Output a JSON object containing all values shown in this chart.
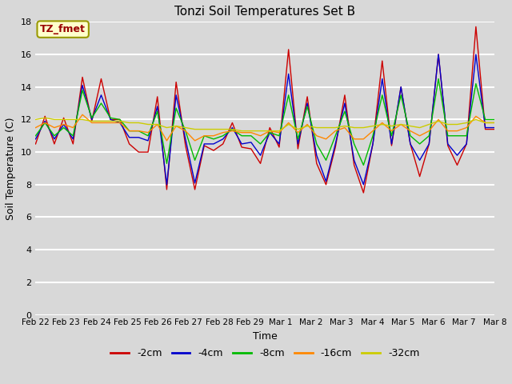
{
  "title": "Tonzi Soil Temperatures Set B",
  "xlabel": "Time",
  "ylabel": "Soil Temperature (C)",
  "annotation": "TZ_fmet",
  "ylim": [
    0,
    18
  ],
  "yticks": [
    0,
    2,
    4,
    6,
    8,
    10,
    12,
    14,
    16,
    18
  ],
  "xtick_labels": [
    "Feb 22",
    "Feb 23",
    "Feb 24",
    "Feb 25",
    "Feb 26",
    "Feb 27",
    "Feb 28",
    "Feb 29",
    "Mar 1",
    "Mar 2",
    "Mar 3",
    "Mar 4",
    "Mar 5",
    "Mar 6",
    "Mar 7",
    "Mar 8"
  ],
  "series_colors": [
    "#cc0000",
    "#0000cc",
    "#00bb00",
    "#ff8800",
    "#cccc00"
  ],
  "series_labels": [
    "-2cm",
    "-4cm",
    "-8cm",
    "-16cm",
    "-32cm"
  ],
  "background_color": "#d8d8d8",
  "plot_bg_color": "#d8d8d8",
  "grid_color": "#ffffff",
  "legend_bg_color": "#ffffff",
  "annotation_box_color": "#ffffcc",
  "annotation_box_edge": "#999900",
  "annotation_text_color": "#990000",
  "data_2cm": [
    10.5,
    12.2,
    10.5,
    12.1,
    10.5,
    14.6,
    11.9,
    14.5,
    12.0,
    12.0,
    10.5,
    10.0,
    10.0,
    13.4,
    7.7,
    14.3,
    10.4,
    7.7,
    10.4,
    10.1,
    10.5,
    11.8,
    10.3,
    10.2,
    9.3,
    11.5,
    10.3,
    16.3,
    10.2,
    13.4,
    9.3,
    8.0,
    10.3,
    13.5,
    9.2,
    7.5,
    10.5,
    15.6,
    10.4,
    14.0,
    10.5,
    8.5,
    10.5,
    16.0,
    10.4,
    9.2,
    10.5,
    17.7,
    11.4,
    11.4
  ],
  "data_4cm": [
    10.8,
    11.9,
    10.8,
    11.7,
    10.8,
    14.1,
    12.0,
    13.5,
    12.0,
    11.8,
    10.9,
    10.9,
    10.7,
    12.8,
    8.0,
    13.5,
    10.8,
    8.1,
    10.5,
    10.5,
    10.8,
    11.5,
    10.5,
    10.6,
    9.8,
    11.2,
    10.5,
    14.8,
    10.5,
    13.0,
    9.8,
    8.2,
    10.5,
    13.0,
    9.5,
    8.0,
    10.5,
    14.5,
    10.5,
    14.0,
    10.5,
    9.5,
    10.5,
    16.0,
    10.5,
    9.8,
    10.5,
    16.0,
    11.5,
    11.5
  ],
  "data_8cm": [
    11.0,
    11.8,
    11.0,
    11.5,
    11.0,
    13.8,
    12.1,
    13.0,
    12.1,
    12.0,
    11.3,
    11.3,
    11.0,
    12.5,
    9.3,
    12.7,
    11.3,
    9.5,
    11.0,
    10.8,
    11.0,
    11.4,
    11.0,
    11.0,
    10.5,
    11.2,
    11.0,
    13.5,
    10.8,
    12.8,
    10.5,
    9.5,
    11.0,
    12.5,
    10.5,
    9.2,
    11.0,
    13.5,
    11.0,
    13.5,
    11.0,
    10.5,
    11.0,
    14.5,
    11.0,
    11.0,
    11.0,
    14.2,
    12.0,
    12.0
  ],
  "data_16cm": [
    11.5,
    11.8,
    11.5,
    11.7,
    11.5,
    12.3,
    11.8,
    11.8,
    11.8,
    11.8,
    11.3,
    11.3,
    11.2,
    11.7,
    10.7,
    11.6,
    11.3,
    10.7,
    11.0,
    11.0,
    11.2,
    11.3,
    11.2,
    11.2,
    11.0,
    11.3,
    11.2,
    11.8,
    11.2,
    11.7,
    11.0,
    10.8,
    11.3,
    11.5,
    10.8,
    10.8,
    11.3,
    11.8,
    11.3,
    11.7,
    11.3,
    11.0,
    11.3,
    12.0,
    11.3,
    11.3,
    11.5,
    12.2,
    11.8,
    11.8
  ],
  "data_32cm": [
    12.0,
    12.1,
    12.0,
    12.0,
    12.0,
    12.0,
    11.9,
    11.9,
    11.9,
    11.9,
    11.8,
    11.8,
    11.7,
    11.7,
    11.5,
    11.6,
    11.5,
    11.4,
    11.4,
    11.4,
    11.4,
    11.4,
    11.3,
    11.3,
    11.3,
    11.3,
    11.3,
    11.7,
    11.4,
    11.6,
    11.5,
    11.5,
    11.5,
    11.6,
    11.5,
    11.5,
    11.6,
    11.7,
    11.6,
    11.7,
    11.6,
    11.5,
    11.7,
    11.9,
    11.7,
    11.7,
    11.8,
    12.0,
    11.8,
    11.8
  ]
}
